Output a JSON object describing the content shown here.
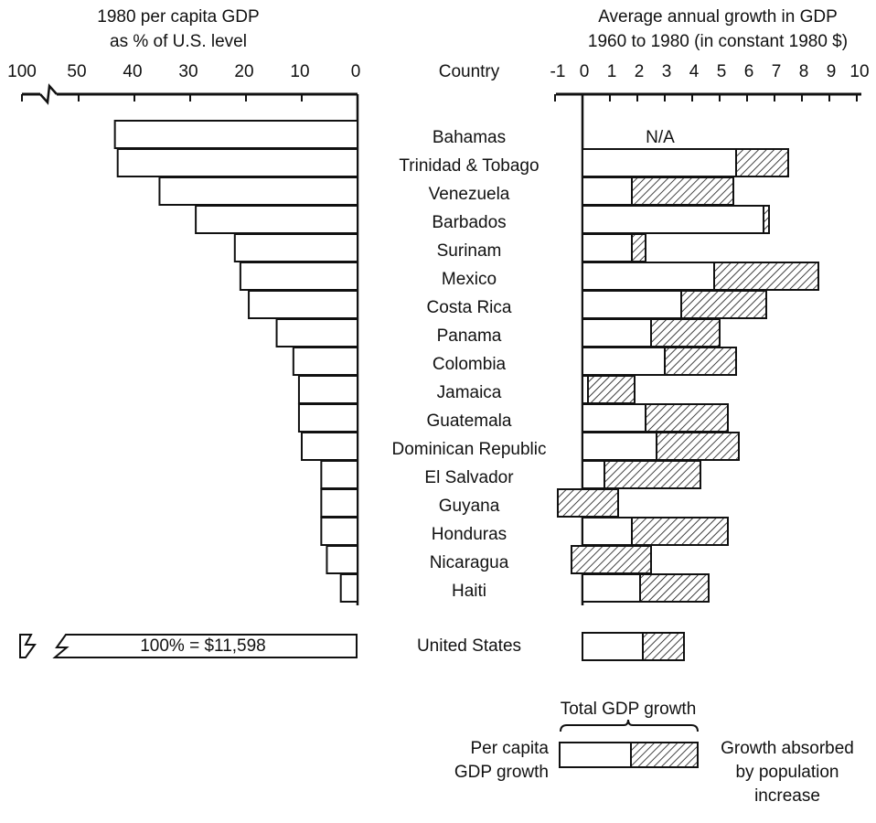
{
  "colors": {
    "ink": "#111111",
    "paper": "#ffffff"
  },
  "left_panel": {
    "title_line1": "1980 per capita GDP",
    "title_line2": "as % of U.S. level",
    "ticks": [
      "100",
      "50",
      "40",
      "30",
      "20",
      "10",
      "0"
    ]
  },
  "country_header": "Country",
  "right_panel": {
    "title_line1": "Average annual growth in GDP",
    "title_line2": "1960 to 1980 (in constant 1980 $)",
    "ticks": [
      "-1",
      "0",
      "1",
      "2",
      "3",
      "4",
      "5",
      "6",
      "7",
      "8",
      "9",
      "10"
    ]
  },
  "na_label": "N/A",
  "us_bar_label": "100% = $11,598",
  "legend": {
    "title": "Total GDP growth",
    "left_line1": "Per capita",
    "left_line2": "GDP growth",
    "right_line1": "Growth absorbed",
    "right_line2": "by population",
    "right_line3": "increase"
  },
  "chart_data": [
    {
      "type": "bar",
      "orientation": "horizontal",
      "title": "1980 per capita GDP as % of U.S. level",
      "xlim": [
        0,
        100
      ],
      "axis_break_between": [
        50,
        100
      ],
      "categories": [
        "Bahamas",
        "Trinidad & Tobago",
        "Venezuela",
        "Barbados",
        "Surinam",
        "Mexico",
        "Costa Rica",
        "Panama",
        "Colombia",
        "Jamaica",
        "Guatemala",
        "Dominican Republic",
        "El Salvador",
        "Guyana",
        "Honduras",
        "Nicaragua",
        "Haiti",
        "United States"
      ],
      "values": [
        43.5,
        43,
        35.5,
        29,
        22,
        21,
        19.5,
        14.5,
        11.5,
        10.5,
        10.5,
        10,
        6.5,
        6.5,
        6.5,
        5.5,
        3,
        100
      ]
    },
    {
      "type": "bar",
      "orientation": "horizontal",
      "stacked": true,
      "title": "Average annual growth in GDP 1960 to 1980 (in constant 1980 $)",
      "xlim": [
        -1,
        10
      ],
      "categories": [
        "Bahamas",
        "Trinidad & Tobago",
        "Venezuela",
        "Barbados",
        "Surinam",
        "Mexico",
        "Costa Rica",
        "Panama",
        "Colombia",
        "Jamaica",
        "Guatemala",
        "Dominican Republic",
        "El Salvador",
        "Guyana",
        "Honduras",
        "Nicaragua",
        "Haiti",
        "United States"
      ],
      "series": [
        {
          "name": "Per capita GDP growth",
          "values": [
            null,
            5.6,
            1.8,
            6.6,
            1.8,
            4.8,
            3.6,
            2.5,
            3.0,
            0.2,
            2.3,
            2.7,
            0.8,
            -0.9,
            1.8,
            -0.4,
            2.1,
            2.2
          ]
        },
        {
          "name": "Growth absorbed by population increase",
          "values": [
            null,
            1.9,
            3.7,
            0.2,
            0.5,
            3.8,
            3.1,
            2.5,
            2.6,
            1.7,
            3.0,
            3.0,
            3.5,
            2.2,
            3.5,
            2.9,
            2.5,
            1.5
          ]
        }
      ],
      "total_values": [
        null,
        7.5,
        5.5,
        6.8,
        2.3,
        8.6,
        6.7,
        5.0,
        5.6,
        1.9,
        5.3,
        5.7,
        4.3,
        1.3,
        5.3,
        2.5,
        4.6,
        3.7
      ],
      "na_categories": [
        "Bahamas"
      ]
    }
  ]
}
